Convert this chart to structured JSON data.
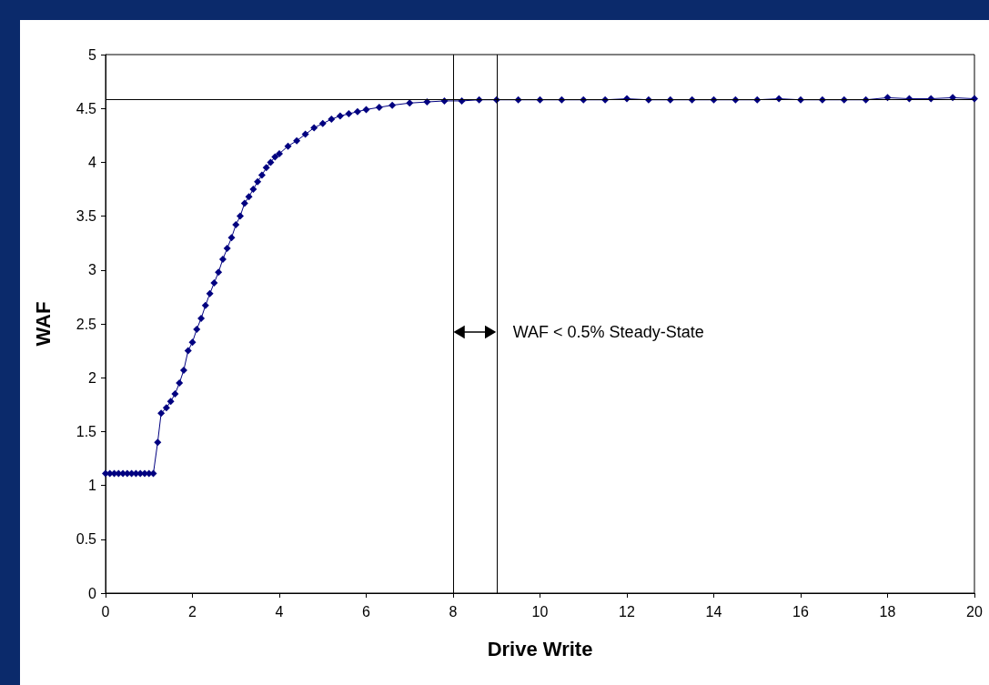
{
  "chart_data": {
    "type": "line",
    "xlabel": "Drive Write",
    "ylabel": "WAF",
    "x": [
      0,
      0.1,
      0.2,
      0.3,
      0.4,
      0.5,
      0.6,
      0.7,
      0.8,
      0.9,
      1.0,
      1.1,
      1.2,
      1.28,
      1.4,
      1.5,
      1.6,
      1.7,
      1.8,
      1.9,
      2.0,
      2.1,
      2.2,
      2.3,
      2.4,
      2.5,
      2.6,
      2.7,
      2.8,
      2.9,
      3.0,
      3.1,
      3.2,
      3.3,
      3.4,
      3.5,
      3.6,
      3.7,
      3.8,
      3.9,
      4.0,
      4.2,
      4.4,
      4.6,
      4.8,
      5.0,
      5.2,
      5.4,
      5.6,
      5.8,
      6.0,
      6.3,
      6.6,
      7.0,
      7.4,
      7.8,
      8.2,
      8.6,
      9.0,
      9.5,
      10,
      10.5,
      11,
      11.5,
      12,
      12.5,
      13,
      13.5,
      14,
      14.5,
      15,
      15.5,
      16,
      16.5,
      17,
      17.5,
      18,
      18.5,
      19,
      19.5,
      20
    ],
    "series": [
      {
        "color": "#000080",
        "values": [
          1.11,
          1.11,
          1.11,
          1.11,
          1.11,
          1.11,
          1.11,
          1.11,
          1.11,
          1.11,
          1.11,
          1.11,
          1.4,
          1.67,
          1.72,
          1.78,
          1.85,
          1.95,
          2.07,
          2.25,
          2.33,
          2.45,
          2.55,
          2.67,
          2.78,
          2.88,
          2.98,
          3.1,
          3.2,
          3.3,
          3.42,
          3.5,
          3.62,
          3.68,
          3.75,
          3.82,
          3.88,
          3.95,
          4.0,
          4.05,
          4.08,
          4.15,
          4.2,
          4.26,
          4.32,
          4.36,
          4.4,
          4.43,
          4.45,
          4.47,
          4.49,
          4.51,
          4.53,
          4.55,
          4.56,
          4.57,
          4.57,
          4.58,
          4.58,
          4.58,
          4.58,
          4.58,
          4.58,
          4.58,
          4.59,
          4.58,
          4.58,
          4.58,
          4.58,
          4.58,
          4.58,
          4.59,
          4.58,
          4.58,
          4.58,
          4.58,
          4.6,
          4.59,
          4.59,
          4.6,
          4.59
        ]
      }
    ],
    "xlim": [
      0,
      20
    ],
    "xticks": [
      0,
      2,
      4,
      6,
      8,
      10,
      12,
      14,
      16,
      18,
      20
    ],
    "ylim": [
      0,
      5
    ],
    "yticks": [
      0,
      0.5,
      1,
      1.5,
      2,
      2.5,
      3,
      3.5,
      4,
      4.5,
      5
    ],
    "ref_lines": [
      {
        "axis": "x",
        "value": 8,
        "color": "#000000"
      },
      {
        "axis": "x",
        "value": 9,
        "color": "#000000"
      },
      {
        "axis": "y",
        "value": 4.58,
        "color": "#000000"
      }
    ],
    "annotations": [
      {
        "text": "WAF < 0.5% Steady-State",
        "x": 9,
        "y": 2.42
      }
    ],
    "marker": "diamond",
    "grid": false
  }
}
